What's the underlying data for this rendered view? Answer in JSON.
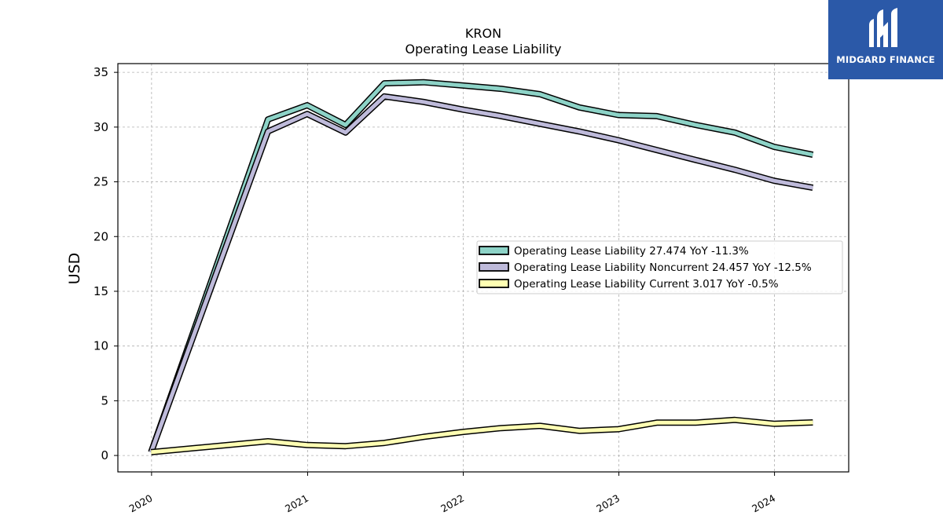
{
  "brand": {
    "name": "MIDGARD FINANCE",
    "icon": "midgard-logo-icon",
    "color": "#2b59a8"
  },
  "chart_data": {
    "type": "line",
    "title": "KRON",
    "subtitle": "Operating Lease Liability",
    "xlabel": "",
    "ylabel": "USD",
    "x": [
      "2019-12-31",
      "2020-09-30",
      "2020-12-31",
      "2021-03-31",
      "2021-06-30",
      "2021-09-30",
      "2021-12-31",
      "2022-03-31",
      "2022-06-30",
      "2022-09-30",
      "2022-12-31",
      "2023-03-31",
      "2023-06-30",
      "2023-09-30",
      "2023-12-31",
      "2024-03-31"
    ],
    "xticks": [
      "2020",
      "2021",
      "2022",
      "2023",
      "2024"
    ],
    "yticks": [
      "0",
      "5",
      "10",
      "15",
      "20",
      "25",
      "30",
      "35"
    ],
    "xlim": [
      "2019-10-14",
      "2024-06-23"
    ],
    "ylim": [
      -1.5,
      35.8
    ],
    "grid": true,
    "legend_position": "center-right",
    "series": [
      {
        "name": "Operating Lease Liability",
        "legend": "Operating Lease Liability  27.474 YoY -11.3%",
        "color": "#8dd3c7",
        "values": [
          0.3,
          30.7,
          32.0,
          30.2,
          34.0,
          34.1,
          33.8,
          33.5,
          33.0,
          31.8,
          31.1,
          31.0,
          30.2,
          29.5,
          28.2,
          27.474
        ]
      },
      {
        "name": "Operating Lease Liability Noncurrent",
        "legend": "Operating Lease Liability Noncurrent  24.457 YoY -12.5%",
        "color": "#bebada",
        "values": [
          0.3,
          29.6,
          31.2,
          29.5,
          32.8,
          32.3,
          31.6,
          31.0,
          30.3,
          29.6,
          28.8,
          27.9,
          27.0,
          26.1,
          25.1,
          24.457
        ]
      },
      {
        "name": "Operating Lease Liability Current",
        "legend": "Operating Lease Liability Current  3.017 YoY -0.5%",
        "color": "#ffffb3",
        "values": [
          0.3,
          1.3,
          0.95,
          0.85,
          1.15,
          1.7,
          2.15,
          2.5,
          2.7,
          2.25,
          2.4,
          3.0,
          3.0,
          3.25,
          2.9,
          3.017
        ]
      }
    ]
  }
}
